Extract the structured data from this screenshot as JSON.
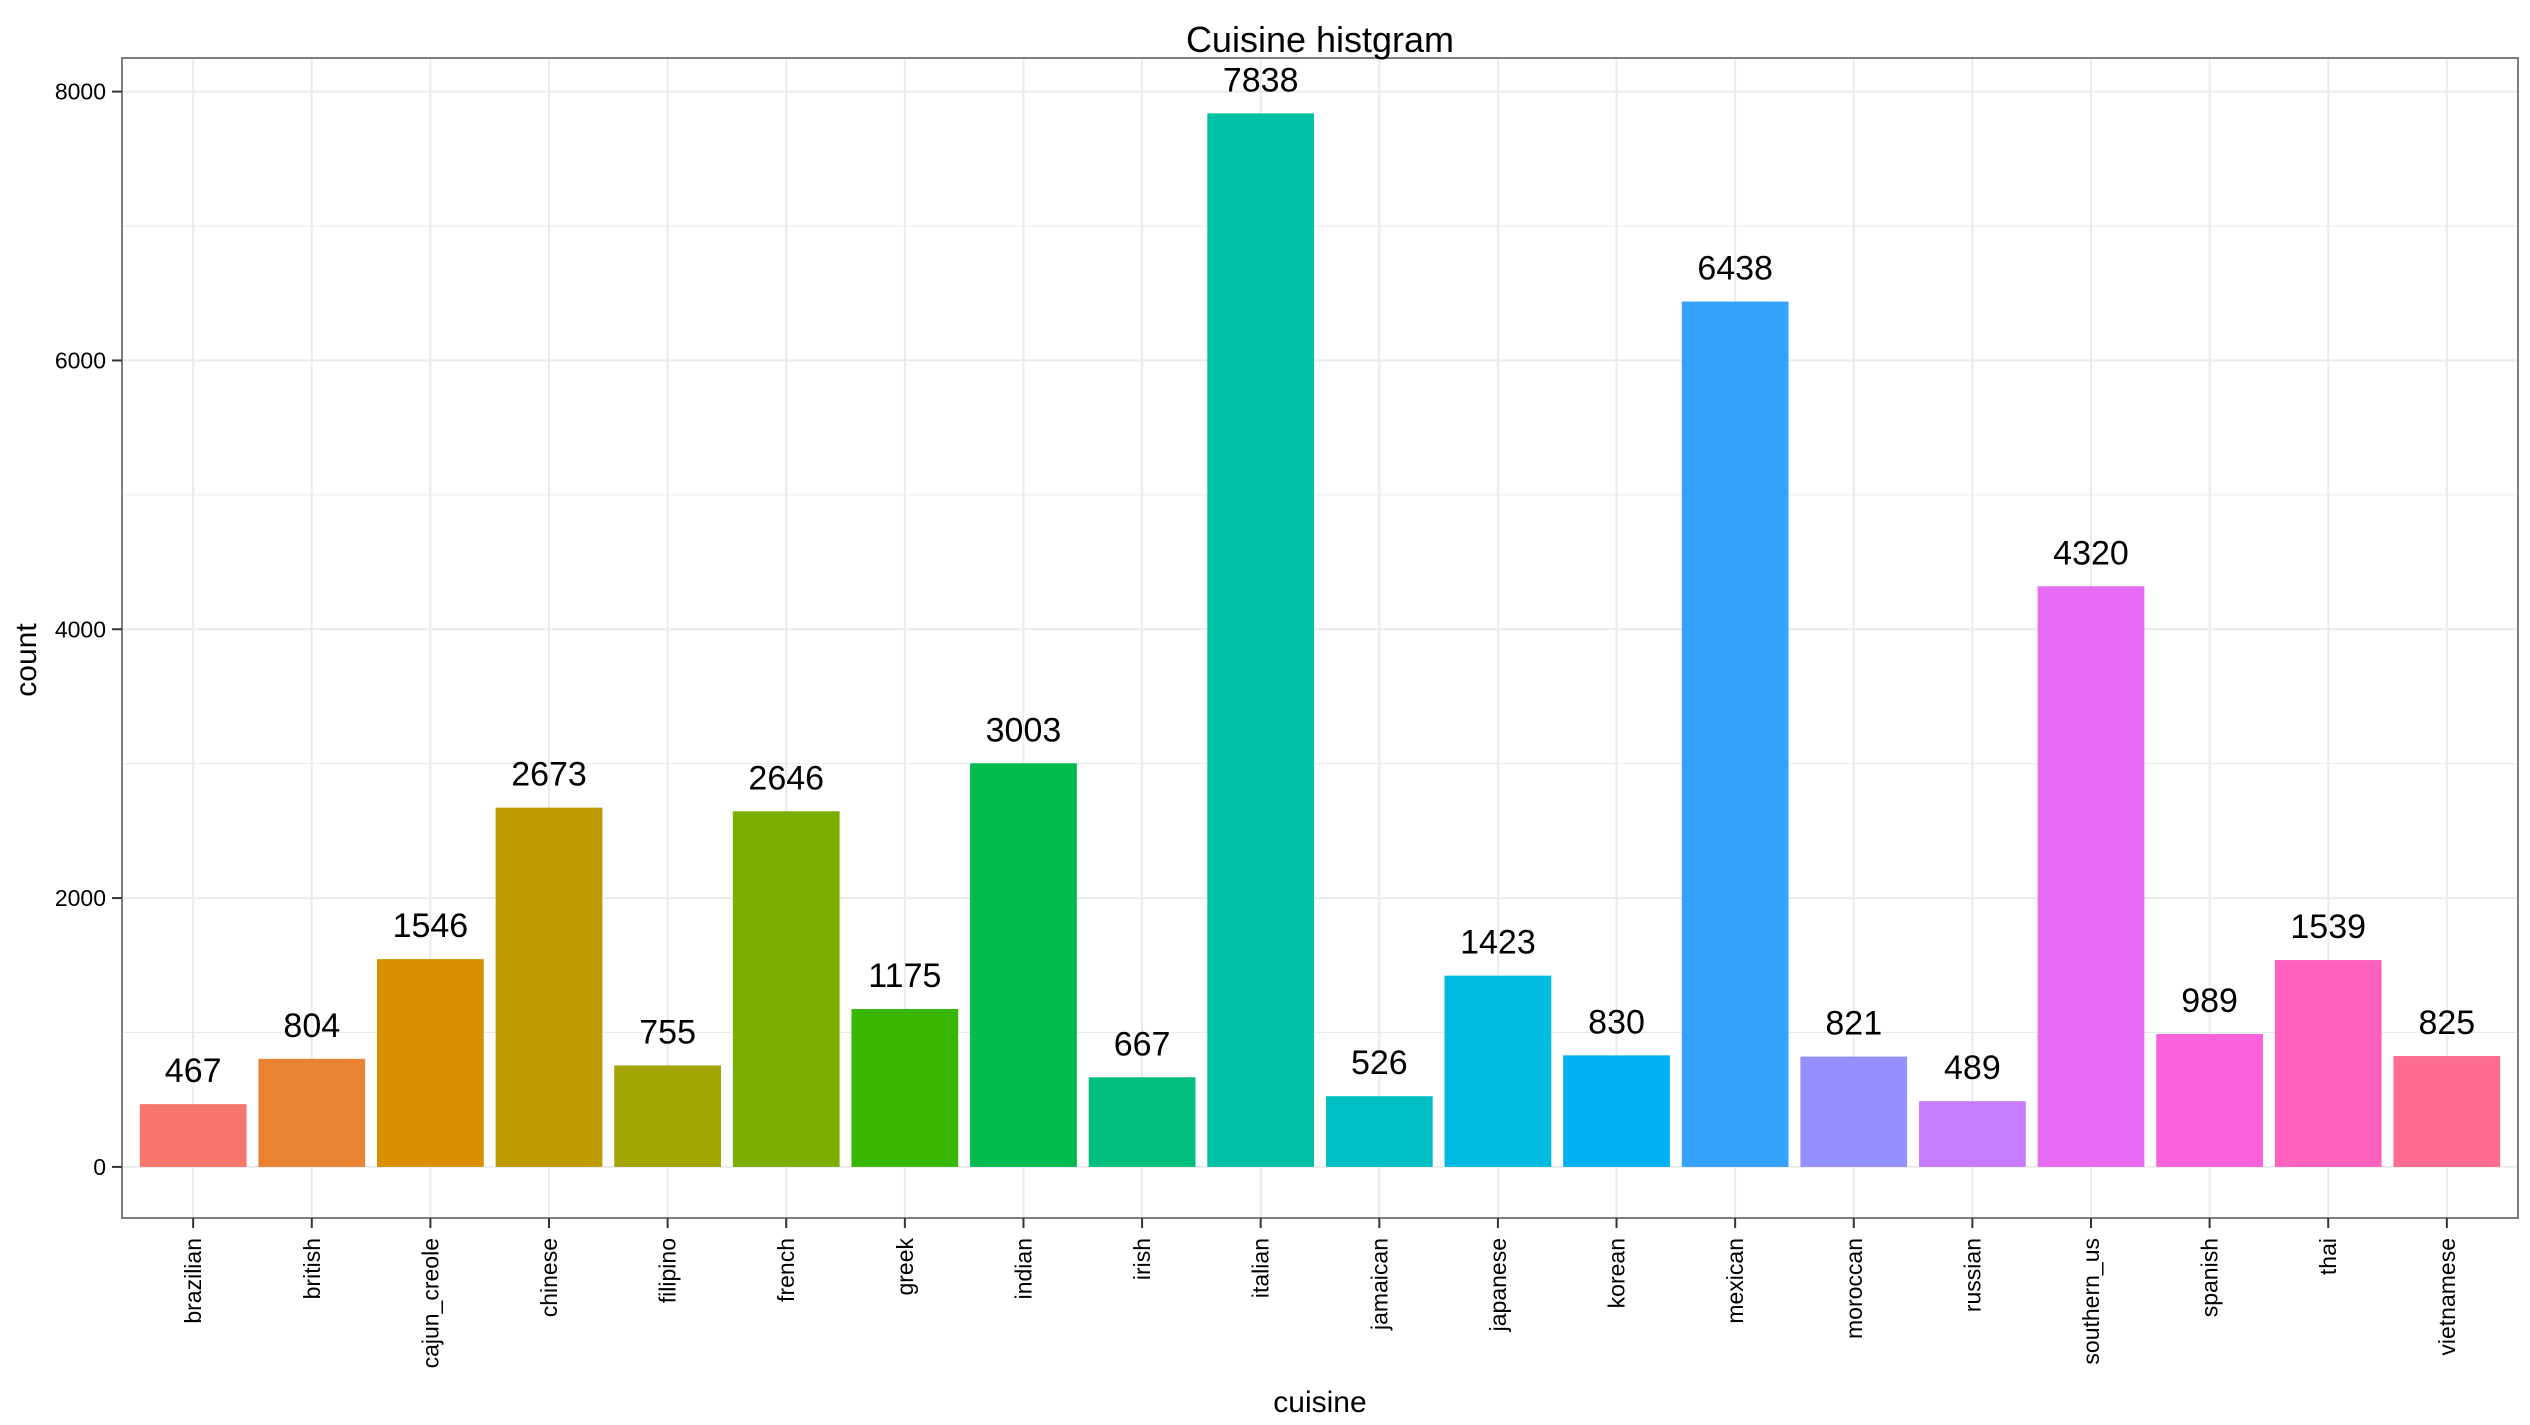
{
  "chart_data": {
    "type": "bar",
    "title": "Cuisine histgram",
    "xlabel": "cuisine",
    "ylabel": "count",
    "categories": [
      "brazilian",
      "british",
      "cajun_creole",
      "chinese",
      "filipino",
      "french",
      "greek",
      "indian",
      "irish",
      "italian",
      "jamaican",
      "japanese",
      "korean",
      "mexican",
      "moroccan",
      "russian",
      "southern_us",
      "spanish",
      "thai",
      "vietnamese"
    ],
    "values": [
      467,
      804,
      1546,
      2673,
      755,
      2646,
      1175,
      3003,
      667,
      7838,
      526,
      1423,
      830,
      6438,
      821,
      489,
      4320,
      989,
      1539,
      825
    ],
    "data_labels": [
      "467",
      "804",
      "1546",
      "2673",
      "755",
      "2646",
      "1175",
      "3003",
      "667",
      "7838",
      "526",
      "1423",
      "830",
      "6438",
      "821",
      "489",
      "4320",
      "989",
      "1539",
      "825"
    ],
    "bar_colors": [
      "#F8766D",
      "#EA8331",
      "#D89000",
      "#C09B00",
      "#A3A500",
      "#7CAE00",
      "#39B600",
      "#00BB4E",
      "#00BF7D",
      "#00C1A3",
      "#00BFC4",
      "#00BAE0",
      "#00B0F6",
      "#35A2FF",
      "#9590FF",
      "#C77CFF",
      "#E76BF3",
      "#FA62DB",
      "#FF62BC",
      "#FF6C91"
    ],
    "yticks": [
      "0",
      "2000",
      "4000",
      "6000",
      "8000"
    ],
    "ytick_values": [
      0,
      2000,
      4000,
      6000,
      8000
    ],
    "ylim": [
      -380,
      8250
    ],
    "grid": true,
    "legend": "none",
    "panel_border_color": "#7f7f7f",
    "grid_color": "#ebebeb"
  }
}
